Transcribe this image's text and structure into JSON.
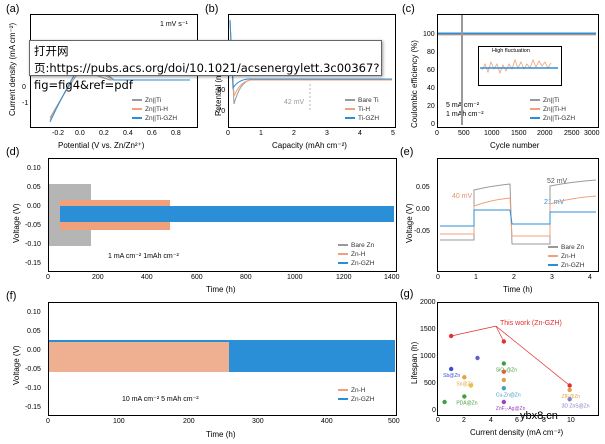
{
  "tooltip": {
    "text": "打开网页:https://pubs.acs.org/doi/10.1021/acsenergylett.3c00367?fig=fig4&ref=pdf"
  },
  "watermark": "ybx8.cn",
  "colors": {
    "gray": "#999999",
    "salmon": "#f0a07a",
    "blue": "#2a8fd6",
    "red": "#e03030"
  },
  "panels": {
    "a": {
      "label": "(a)",
      "ylabel": "Current density (mA cm⁻²)",
      "xlabel": "Potential (V vs. Zn/Zn²⁺)",
      "note": "1 mV s⁻¹",
      "xticks": [
        "-0.2",
        "0.0",
        "0.2",
        "0.4",
        "0.6",
        "0.8"
      ],
      "yticks": [
        "0",
        "-1"
      ],
      "legend": [
        "Zn||Ti",
        "Zn||Ti-H",
        "Zn||Ti-GZH"
      ]
    },
    "b": {
      "label": "(b)",
      "ylabel": "Potential (mV)",
      "xlabel": "Capacity (mAh cm⁻²)",
      "note": "42 mV",
      "xticks": [
        "0",
        "1",
        "2",
        "3",
        "4",
        "5"
      ],
      "yticks": [
        "-60",
        "-70"
      ],
      "legend": [
        "Bare Ti",
        "Ti-H",
        "Ti-GZH"
      ]
    },
    "c": {
      "label": "(c)",
      "ylabel": "Coulombic efficiency (%)",
      "xlabel": "Cycle number",
      "xticks": [
        "0",
        "500",
        "1000",
        "1500",
        "2000",
        "2500",
        "3000"
      ],
      "yticks": [
        "100",
        "80",
        "60",
        "40",
        "20",
        "0"
      ],
      "inset_title": "High fluctuation",
      "inset_xticks": [
        "2000",
        "2200",
        "2400",
        "2600",
        "2800",
        "3000"
      ],
      "note1": "5 mA cm⁻²",
      "note2": "1 mAh cm⁻²",
      "legend": [
        "Zn||Ti",
        "Zn||Ti-H",
        "Zn||Ti-GZH"
      ]
    },
    "d": {
      "label": "(d)",
      "ylabel": "Voltage (V)",
      "xlabel": "Time (h)",
      "note": "1 mA cm⁻²  1mAh cm⁻²",
      "xticks": [
        "0",
        "200",
        "400",
        "600",
        "800",
        "1000",
        "1200",
        "1400"
      ],
      "yticks": [
        "0.10",
        "0.05",
        "0.00",
        "-0.05",
        "-0.10",
        "-0.15"
      ],
      "legend": [
        "Bare Zn",
        "Zn-H",
        "Zn-GZH"
      ]
    },
    "e": {
      "label": "(e)",
      "ylabel": "Voltage (V)",
      "xlabel": "Time (h)",
      "note1": "52 mV",
      "note2": "40 mV",
      "note3": "21 mV",
      "xticks": [
        "0",
        "1",
        "2",
        "3",
        "4"
      ],
      "yticks": [
        "0.05",
        "0.00",
        "-0.05"
      ],
      "legend": [
        "Bare Zn",
        "Zn-H",
        "Zn-GZH"
      ]
    },
    "f": {
      "label": "(f)",
      "ylabel": "Voltage (V)",
      "xlabel": "Time (h)",
      "note": "10 mA cm⁻²  5 mAh cm⁻²",
      "xticks": [
        "0",
        "100",
        "200",
        "300",
        "400",
        "500"
      ],
      "yticks": [
        "0.10",
        "0.05",
        "0.00",
        "-0.05",
        "-0.10",
        "-0.15"
      ],
      "legend": [
        "Zn-H",
        "Zn-GZH"
      ]
    },
    "g": {
      "label": "(g)",
      "ylabel": "Lifespan (h)",
      "xlabel": "Current density (mA cm⁻²)",
      "xticks": [
        "0",
        "2",
        "4",
        "6",
        "8",
        "10"
      ],
      "yticks": [
        "2000",
        "1500",
        "1000",
        "500",
        "0"
      ],
      "callout": "This work (Zn-GZH)"
    }
  },
  "chart_data": {
    "type": "scatter",
    "xlabel": "Current density (mA cm⁻²)",
    "ylabel": "Lifespan (h)",
    "xlim": [
      0,
      12
    ],
    "ylim": [
      0,
      2000
    ],
    "points": [
      {
        "label": "Sb@Zn",
        "x": 1,
        "y": 800,
        "color": "#3a4fd0"
      },
      {
        "label": "Sn@Zn",
        "x": 2,
        "y": 650,
        "color": "#e8a040"
      },
      {
        "label": "PDA@Zn",
        "x": 2,
        "y": 300,
        "color": "#40a040"
      },
      {
        "label": "",
        "x": 3,
        "y": 1000,
        "color": "#6060d0"
      },
      {
        "label": "",
        "x": 2.5,
        "y": 500,
        "color": "#e8c040"
      },
      {
        "label": "SiO₂@Zn",
        "x": 5,
        "y": 900,
        "color": "#40a040"
      },
      {
        "label": "",
        "x": 5,
        "y": 750,
        "color": "#e06040"
      },
      {
        "label": "",
        "x": 5,
        "y": 600,
        "color": "#e0a040"
      },
      {
        "label": "Cu-Zn@Zn",
        "x": 5,
        "y": 450,
        "color": "#40a0c0"
      },
      {
        "label": "ZnF₂-Ag@Zn",
        "x": 5,
        "y": 200,
        "color": "#a040c0"
      },
      {
        "label": "ZIF@Zn",
        "x": 10,
        "y": 420,
        "color": "#e0a040"
      },
      {
        "label": "3D ZnS@Zn",
        "x": 10,
        "y": 250,
        "color": "#8080c0"
      },
      {
        "label": "",
        "x": 0.5,
        "y": 200,
        "color": "#40a040"
      },
      {
        "label": "This work",
        "x": 1,
        "y": 1400,
        "color": "#e03030"
      },
      {
        "label": "This work",
        "x": 5,
        "y": 1300,
        "color": "#e03030"
      },
      {
        "label": "This work",
        "x": 10,
        "y": 500,
        "color": "#e03030"
      }
    ]
  }
}
